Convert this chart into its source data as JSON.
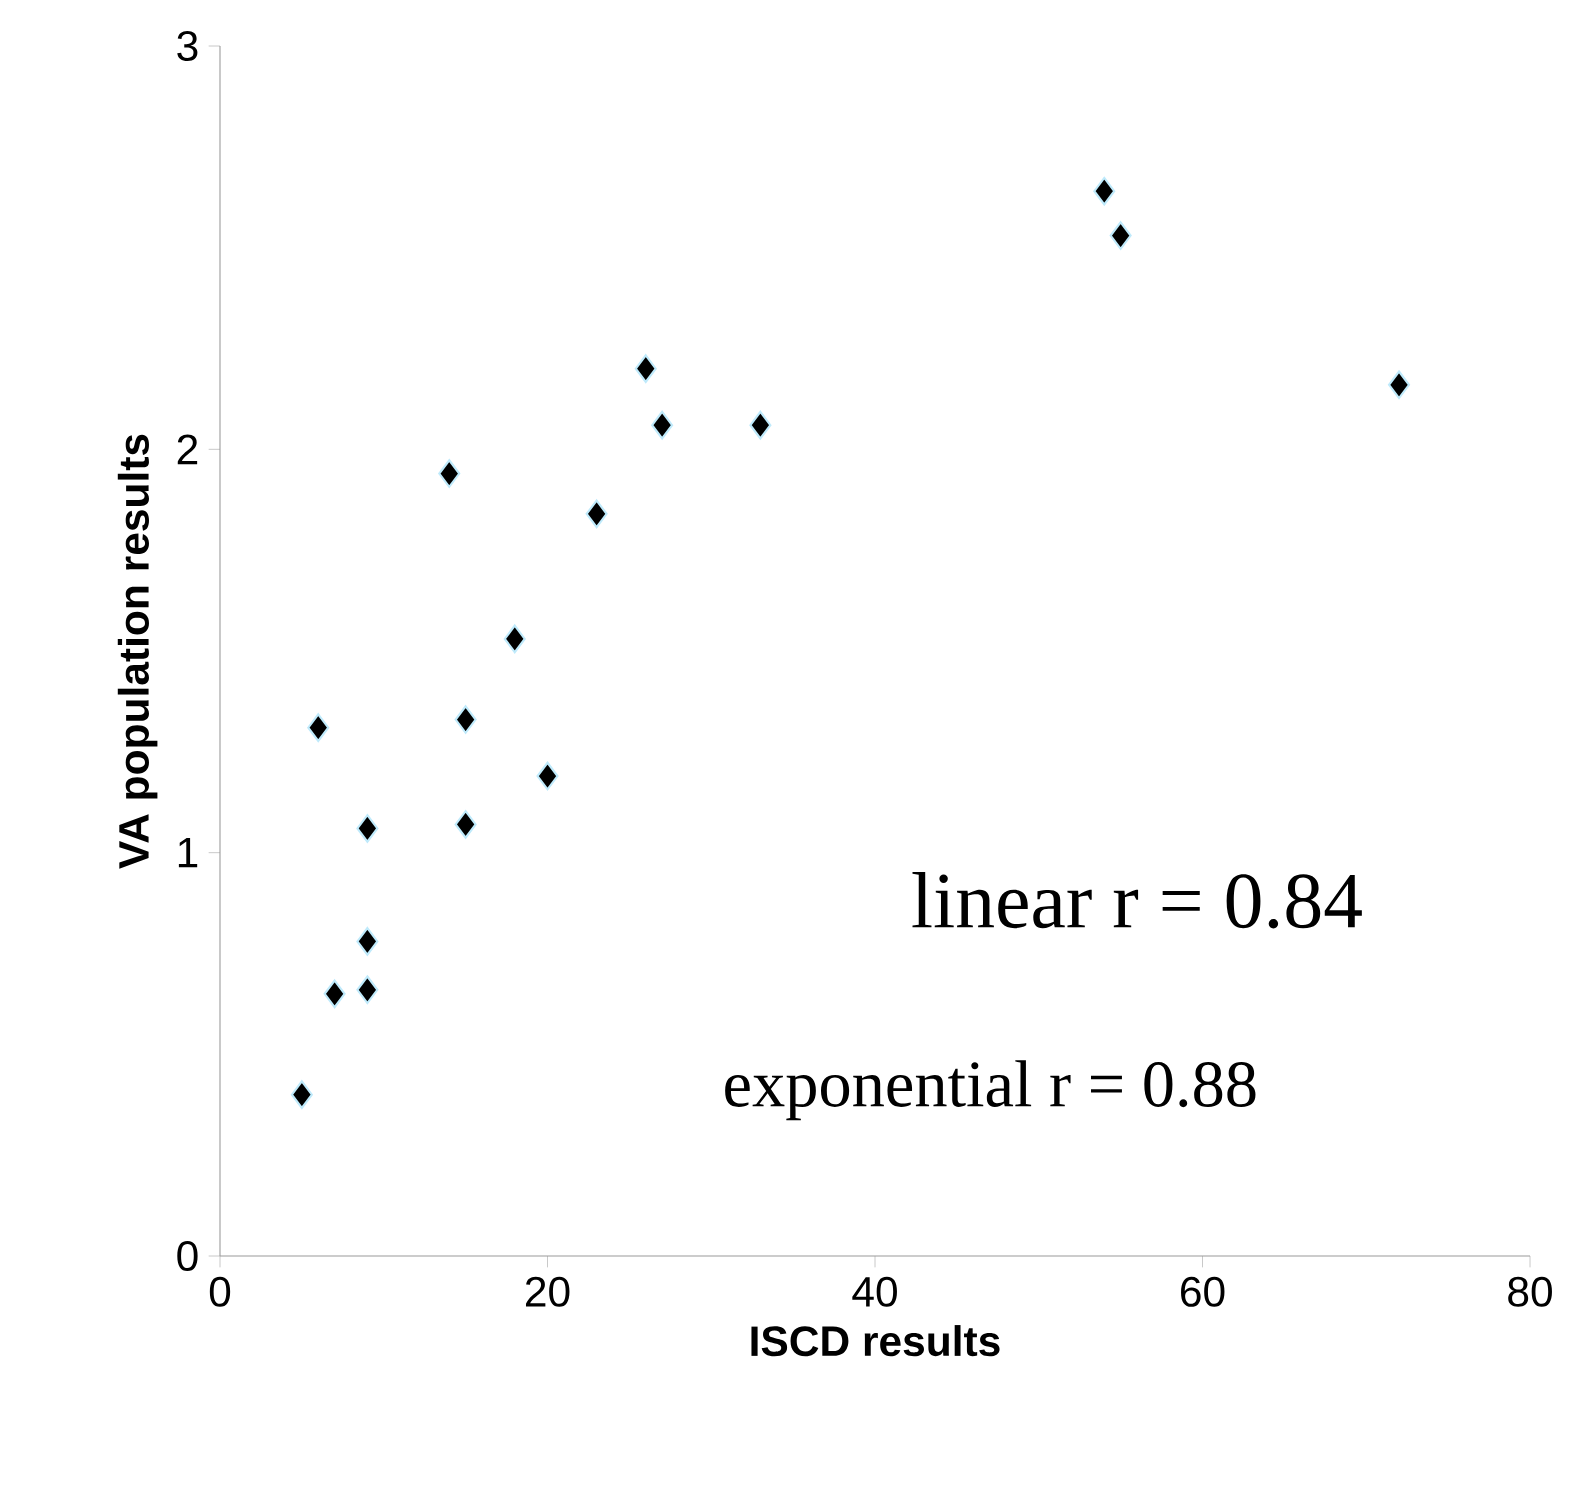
{
  "chart_data": {
    "type": "scatter",
    "xlabel": "ISCD results",
    "ylabel": "VA population results",
    "x": [
      5,
      7,
      9,
      9,
      9,
      6,
      15,
      15,
      20,
      18,
      14,
      23,
      26,
      27,
      33,
      54,
      55,
      72
    ],
    "values": [
      0.4,
      0.65,
      0.66,
      0.78,
      1.06,
      1.31,
      1.07,
      1.33,
      1.19,
      1.53,
      1.94,
      1.84,
      2.2,
      2.06,
      2.06,
      2.64,
      2.53,
      2.16
    ],
    "color": "#000000",
    "marker": "diamond",
    "xlim": [
      0,
      80
    ],
    "xticks": [
      0,
      20,
      40,
      60,
      80
    ],
    "ylim": [
      0,
      3
    ],
    "yticks": [
      0,
      1,
      2,
      3
    ],
    "annotations": [
      "linear r = 0.84",
      "exponential r = 0.88"
    ]
  }
}
